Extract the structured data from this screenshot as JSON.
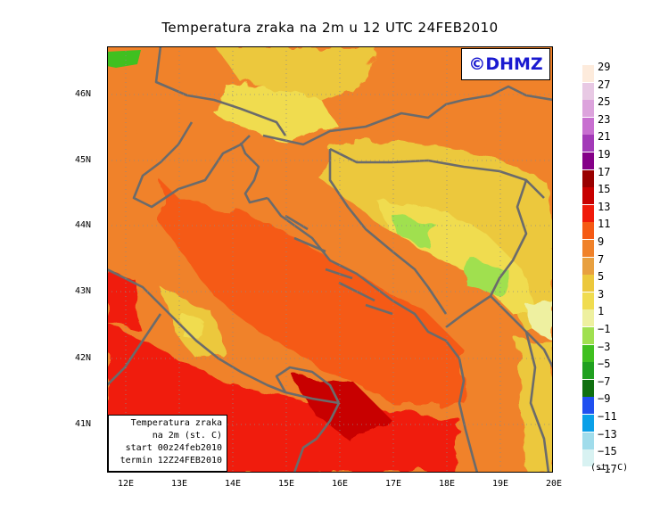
{
  "title": "Temperatura zraka na 2m u 12 UTC 24FEB2010",
  "logo": "©DHMZ",
  "info": {
    "line1": "Temperatura zraka",
    "line2": "na 2m (st. C)",
    "line3": "start 00z24feb2010",
    "line4": "termin 12Z24FEB2010"
  },
  "lat_labels": [
    "46N",
    "45N",
    "44N",
    "43N",
    "42N",
    "41N"
  ],
  "lon_labels": [
    "12E",
    "13E",
    "14E",
    "15E",
    "16E",
    "17E",
    "18E",
    "19E",
    "20E"
  ],
  "legend": {
    "unit": "(st. C)",
    "labels": [
      "29",
      "27",
      "25",
      "23",
      "21",
      "19",
      "17",
      "15",
      "13",
      "11",
      "9",
      "7",
      "5",
      "3",
      "1",
      "−1",
      "−3",
      "−5",
      "−7",
      "−9",
      "−11",
      "−13",
      "−15",
      "−17"
    ],
    "colors": [
      "#fdebdc",
      "#e8c9e4",
      "#dca3dc",
      "#c86fd0",
      "#a33ab8",
      "#850088",
      "#990000",
      "#c80000",
      "#f01a0a",
      "#f55a14",
      "#f0822a",
      "#e8a040",
      "#ecc83c",
      "#f0dc50",
      "#eef0a0",
      "#a0e050",
      "#40c020",
      "#20a020",
      "#107010",
      "#2050f0",
      "#0aa0e8",
      "#a0dceb",
      "#d8f2f2",
      "#ffffff"
    ]
  },
  "colors": {
    "coast": "#6b6b6b",
    "sea": "#f55a14"
  }
}
